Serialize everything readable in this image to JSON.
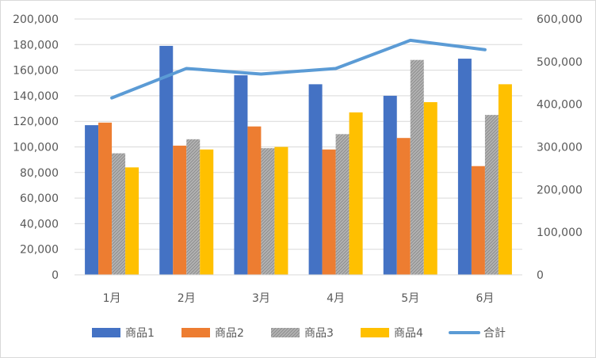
{
  "chart_data": {
    "type": "bar",
    "categories": [
      "1月",
      "2月",
      "3月",
      "4月",
      "5月",
      "6月"
    ],
    "series": [
      {
        "name": "商品1",
        "type": "bar",
        "axis": "left",
        "color": "#4472c4",
        "values": [
          117000,
          179000,
          156000,
          149000,
          140000,
          169000
        ]
      },
      {
        "name": "商品2",
        "type": "bar",
        "axis": "left",
        "color": "#ed7d31",
        "values": [
          119000,
          101000,
          116000,
          98000,
          107000,
          85000
        ]
      },
      {
        "name": "商品3",
        "type": "bar",
        "axis": "left",
        "color": "#a5a5a5",
        "pattern": "hatched",
        "values": [
          95000,
          106000,
          99000,
          110000,
          168000,
          125000
        ]
      },
      {
        "name": "商品4",
        "type": "bar",
        "axis": "left",
        "color": "#ffc000",
        "values": [
          84000,
          98000,
          100000,
          127000,
          135000,
          149000
        ]
      },
      {
        "name": "合計",
        "type": "line",
        "axis": "right",
        "color": "#5b9bd5",
        "values": [
          415000,
          484000,
          471000,
          484000,
          550000,
          528000
        ]
      }
    ],
    "ylim": [
      0,
      200000
    ],
    "y2lim": [
      0,
      600000
    ],
    "yticks": [
      "0",
      "20,000",
      "40,000",
      "60,000",
      "80,000",
      "100,000",
      "120,000",
      "140,000",
      "160,000",
      "180,000",
      "200,000"
    ],
    "y2ticks": [
      "0",
      "100,000",
      "200,000",
      "300,000",
      "400,000",
      "500,000",
      "600,000"
    ],
    "grid": true,
    "legend": "bottom"
  }
}
